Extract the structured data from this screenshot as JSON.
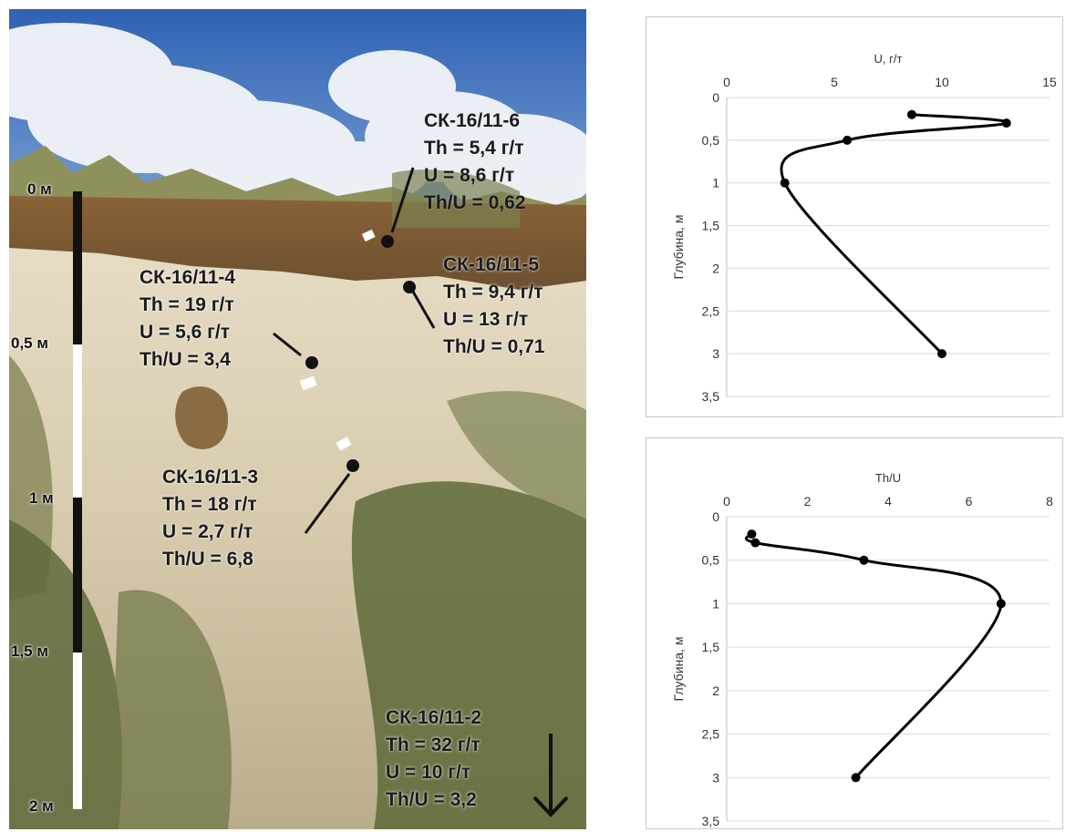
{
  "scale": {
    "labels": [
      "0 м",
      "0,5 м",
      "1 м",
      "1,5 м",
      "2 м"
    ]
  },
  "samples": [
    {
      "id": "СК-16/11-6",
      "th": "Th = 5,4 г/т",
      "u": "U = 8,6 г/т",
      "ratio": "Th/U = 0,62"
    },
    {
      "id": "СК-16/11-5",
      "th": "Th = 9,4 г/т",
      "u": "U = 13 г/т",
      "ratio": "Th/U = 0,71"
    },
    {
      "id": "СК-16/11-4",
      "th": "Th = 19 г/т",
      "u": "U = 5,6 г/т",
      "ratio": "Th/U = 3,4"
    },
    {
      "id": "СК-16/11-3",
      "th": "Th = 18 г/т",
      "u": "U = 2,7 г/т",
      "ratio": "Th/U = 6,8"
    },
    {
      "id": "СК-16/11-2",
      "th": "Th = 32 г/т",
      "u": "U = 10 г/т",
      "ratio": "Th/U = 3,2"
    }
  ],
  "colors": {
    "sky": "#3f6fb8",
    "soil": "#7a5a35",
    "sand": "#d9cdb2",
    "vegetation": "#6d7a45",
    "line": "#000000",
    "grid": "#d9d9d9"
  },
  "chart_data": [
    {
      "type": "line",
      "title": "U, г/т",
      "xlabel": "U, г/т",
      "ylabel": "Глубина, м",
      "xlim": [
        0,
        15
      ],
      "ylim": [
        3.5,
        0
      ],
      "x_ticks": [
        "0",
        "5",
        "10",
        "15"
      ],
      "y_ticks": [
        "0",
        "0,5",
        "1",
        "1,5",
        "2",
        "2,5",
        "3",
        "3,5"
      ],
      "x_axis_position": "top",
      "grid": true,
      "smooth": true,
      "points": [
        {
          "x": 8.6,
          "y": 0.2
        },
        {
          "x": 13,
          "y": 0.3
        },
        {
          "x": 5.6,
          "y": 0.5
        },
        {
          "x": 2.7,
          "y": 1.0
        },
        {
          "x": 10,
          "y": 3.0
        }
      ]
    },
    {
      "type": "line",
      "title": "Th/U",
      "xlabel": "Th/U",
      "ylabel": "Глубина, м",
      "xlim": [
        0,
        8
      ],
      "ylim": [
        3.5,
        0
      ],
      "x_ticks": [
        "0",
        "2",
        "4",
        "6",
        "8"
      ],
      "y_ticks": [
        "0",
        "0,5",
        "1",
        "1,5",
        "2",
        "2,5",
        "3",
        "3,5"
      ],
      "x_axis_position": "top",
      "grid": true,
      "smooth": true,
      "points": [
        {
          "x": 0.62,
          "y": 0.2
        },
        {
          "x": 0.71,
          "y": 0.3
        },
        {
          "x": 3.4,
          "y": 0.5
        },
        {
          "x": 6.8,
          "y": 1.0
        },
        {
          "x": 3.2,
          "y": 3.0
        }
      ]
    }
  ]
}
